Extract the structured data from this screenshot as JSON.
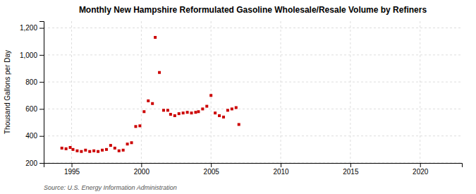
{
  "chart_data": {
    "type": "scatter",
    "title": "Monthly New Hampshire Reformulated Gasoline Wholesale/Resale Volume by Refiners",
    "ylabel": "Thousand Gallons per Day",
    "source": "Source: U.S. Energy Information Administration",
    "color": "#cc0000",
    "marker": "square",
    "grid": true,
    "xlim": [
      1993,
      2023
    ],
    "ylim": [
      200,
      1250
    ],
    "xticks": [
      1995,
      2000,
      2005,
      2010,
      2015,
      2020
    ],
    "yticks": [
      200,
      400,
      600,
      800,
      {
        "value": 1000,
        "label": "1,000"
      },
      {
        "value": 1200,
        "label": "1,200"
      }
    ],
    "x": [
      1994.3,
      1994.6,
      1994.9,
      1995.1,
      1995.4,
      1995.7,
      1996.0,
      1996.3,
      1996.6,
      1996.9,
      1997.2,
      1997.5,
      1997.8,
      1998.1,
      1998.4,
      1998.7,
      1999.0,
      1999.3,
      1999.6,
      1999.9,
      2000.2,
      2000.5,
      2000.8,
      2001.0,
      2001.3,
      2001.6,
      2001.9,
      2002.1,
      2002.4,
      2002.7,
      2003.0,
      2003.3,
      2003.6,
      2003.9,
      2004.1,
      2004.4,
      2004.7,
      2005.0,
      2005.3,
      2005.6,
      2005.9,
      2006.2,
      2006.5,
      2006.8,
      2007.0
    ],
    "values": [
      310,
      305,
      315,
      300,
      290,
      285,
      295,
      285,
      290,
      285,
      295,
      300,
      330,
      310,
      290,
      295,
      340,
      350,
      470,
      475,
      580,
      660,
      640,
      1130,
      870,
      590,
      590,
      560,
      550,
      565,
      570,
      575,
      570,
      575,
      580,
      600,
      620,
      700,
      570,
      550,
      540,
      590,
      600,
      610,
      485
    ]
  }
}
